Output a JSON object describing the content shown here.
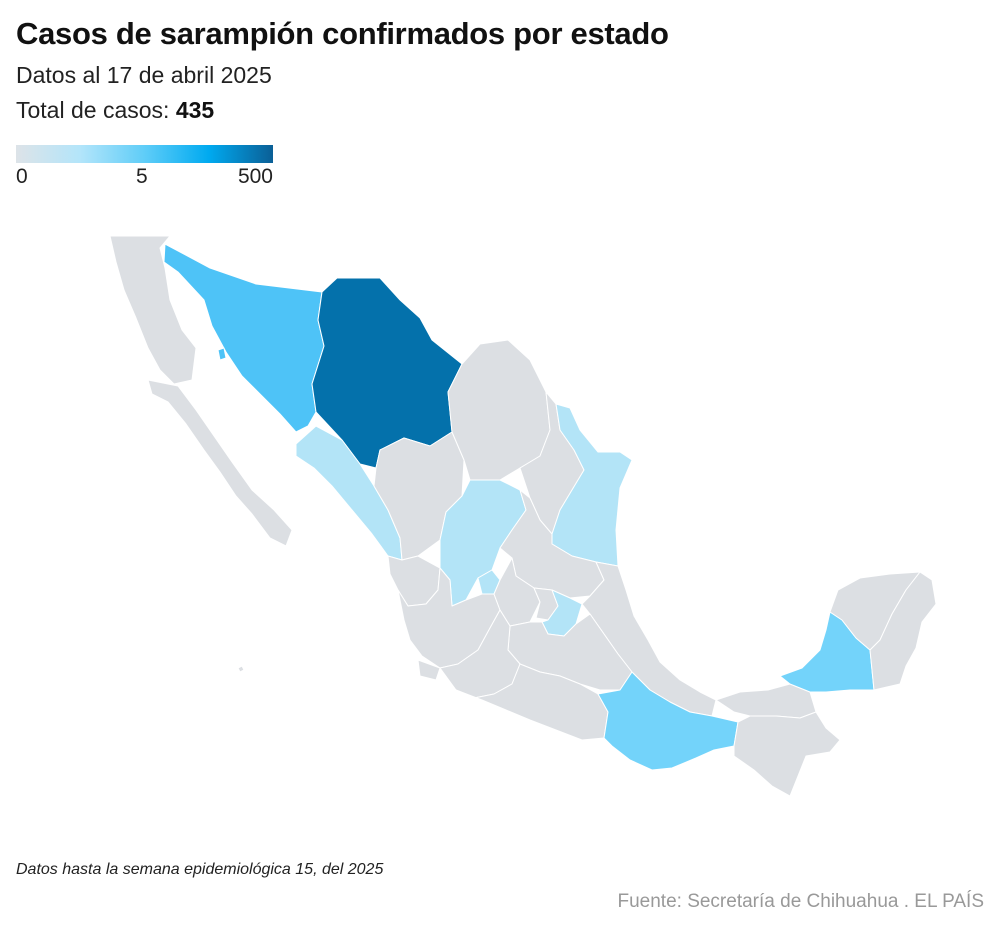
{
  "header": {
    "title": "Casos de sarampión confirmados por estado",
    "subtitle": "Datos al 17 de abril 2025",
    "total_label": "Total de casos:",
    "total_value": "435"
  },
  "legend": {
    "ticks": [
      "0",
      "5",
      "500"
    ],
    "colors": [
      "#dde3e8",
      "#b3e5fa",
      "#5fcdf8",
      "#00aaf0",
      "#0b5f96"
    ]
  },
  "map": {
    "country": "México",
    "colors": {
      "no_cases": "#dcdfe3",
      "low": "#b3e4f7",
      "mid": "#73d3fa",
      "mid_high": "#4ec3f7",
      "high": "#0471ab"
    },
    "states": [
      {
        "name": "Baja California",
        "level": "no_cases"
      },
      {
        "name": "Baja California Sur",
        "level": "no_cases"
      },
      {
        "name": "Sonora",
        "level": "mid_high"
      },
      {
        "name": "Chihuahua",
        "level": "high"
      },
      {
        "name": "Coahuila",
        "level": "no_cases"
      },
      {
        "name": "Nuevo León",
        "level": "no_cases"
      },
      {
        "name": "Tamaulipas",
        "level": "low"
      },
      {
        "name": "Sinaloa",
        "level": "low"
      },
      {
        "name": "Durango",
        "level": "no_cases"
      },
      {
        "name": "Zacatecas",
        "level": "low"
      },
      {
        "name": "San Luis Potosí",
        "level": "no_cases"
      },
      {
        "name": "Nayarit",
        "level": "no_cases"
      },
      {
        "name": "Jalisco",
        "level": "no_cases"
      },
      {
        "name": "Aguascalientes",
        "level": "low"
      },
      {
        "name": "Guanajuato",
        "level": "no_cases"
      },
      {
        "name": "Querétaro",
        "level": "no_cases"
      },
      {
        "name": "Hidalgo",
        "level": "low"
      },
      {
        "name": "Veracruz",
        "level": "no_cases"
      },
      {
        "name": "Michoacán",
        "level": "no_cases"
      },
      {
        "name": "Guerrero",
        "level": "no_cases"
      },
      {
        "name": "Oaxaca",
        "level": "mid"
      },
      {
        "name": "Chiapas",
        "level": "no_cases"
      },
      {
        "name": "Tabasco",
        "level": "no_cases"
      },
      {
        "name": "Campeche",
        "level": "mid"
      },
      {
        "name": "Yucatán",
        "level": "no_cases"
      },
      {
        "name": "Quintana Roo",
        "level": "no_cases"
      }
    ]
  },
  "footer": {
    "note": "Datos hasta la semana epidemiológica 15, del 2025",
    "source": "Fuente: Secretaría de Chihuahua . EL PAÍS"
  }
}
